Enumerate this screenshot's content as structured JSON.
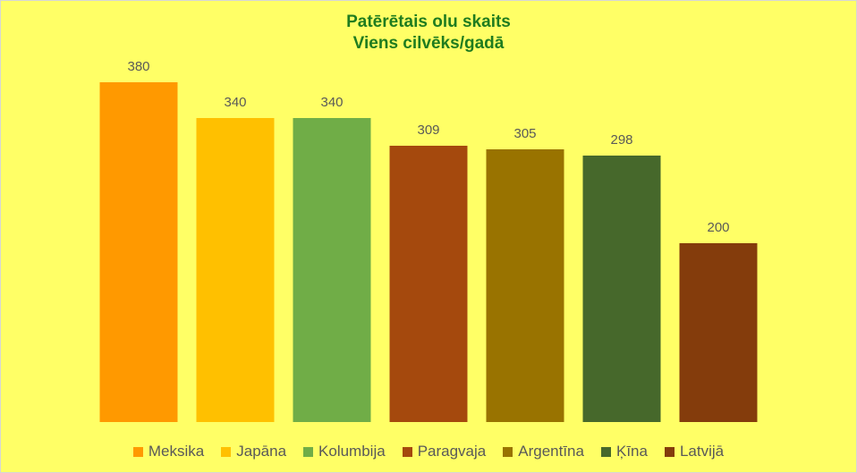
{
  "chart": {
    "title_line1": "Patērētais olu skaits",
    "title_line2": "Viens cilvēks/gadā",
    "title_color": "#1f7c1f",
    "background_color": "#ffff66",
    "border_color": "#d6d6d6",
    "value_label_color": "#595959",
    "legend_text_color": "#595959"
  },
  "chart_data": {
    "type": "bar",
    "title": "Patērētais olu skaits",
    "subtitle": "Viens cilvēks/gadā",
    "categories": [
      "Meksika",
      "Japāna",
      "Kolumbija",
      "Paragvaja",
      "Argentīna",
      "Ķīna",
      "Latvijā"
    ],
    "values": [
      380,
      340,
      340,
      309,
      305,
      298,
      200
    ],
    "data_labels": [
      "380",
      "340",
      "340",
      "309",
      "305",
      "298",
      "200"
    ],
    "colors": [
      "#ff9900",
      "#ffc000",
      "#70ad47",
      "#a5490d",
      "#997300",
      "#46682b",
      "#843c0c"
    ],
    "xlabel": "",
    "ylabel": "",
    "ylim": [
      0,
      380
    ],
    "grid": false,
    "axes_visible": false,
    "legend_position": "bottom"
  }
}
